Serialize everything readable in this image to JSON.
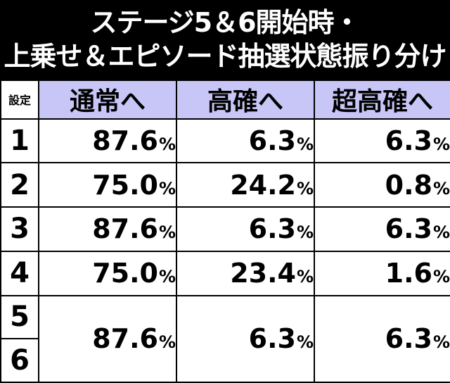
{
  "title": {
    "line1": "ステージ5＆6開始時・",
    "line2": "上乗せ＆エピソード抽選状態振り分け"
  },
  "table": {
    "corner": "設定",
    "headers": [
      "通常へ",
      "高確へ",
      "超高確へ"
    ],
    "rows": [
      {
        "level": "1",
        "normal": "87.6",
        "high": "6.3",
        "super": "6.3"
      },
      {
        "level": "2",
        "normal": "75.0",
        "high": "24.2",
        "super": "0.8"
      },
      {
        "level": "3",
        "normal": "87.6",
        "high": "6.3",
        "super": "6.3"
      },
      {
        "level": "4",
        "normal": "75.0",
        "high": "23.4",
        "super": "1.6"
      }
    ],
    "merged": {
      "levels": [
        "5",
        "6"
      ],
      "normal": "87.6",
      "high": "6.3",
      "super": "6.3"
    },
    "unit": "%"
  },
  "colors": {
    "header_bg": "#c8c6f6",
    "background": "#000000",
    "cell_bg": "#ffffff",
    "title_text": "#ffffff"
  }
}
